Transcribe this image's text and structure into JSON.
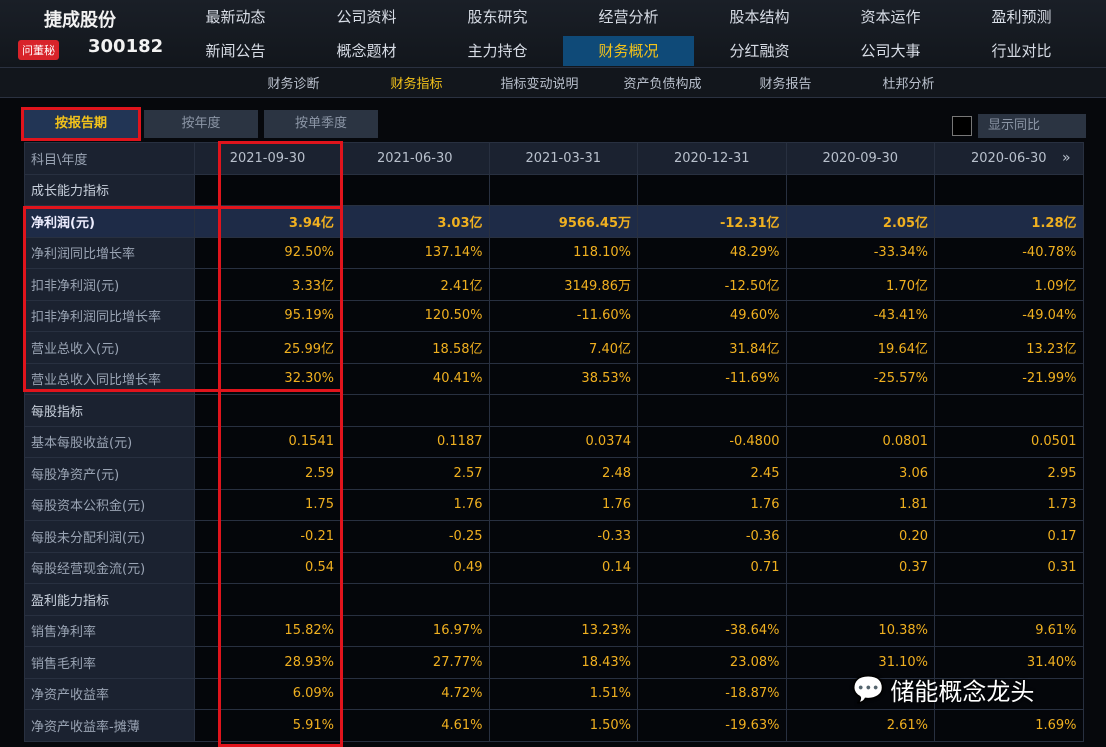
{
  "brand": {
    "name": "捷成股份",
    "badge": "问董秘",
    "code": "300182"
  },
  "nav": {
    "row1": [
      "最新动态",
      "公司资料",
      "股东研究",
      "经营分析",
      "股本结构",
      "资本运作",
      "盈利预测"
    ],
    "row2": [
      "新闻公告",
      "概念题材",
      "主力持仓",
      "财务概况",
      "分红融资",
      "公司大事",
      "行业对比"
    ],
    "active": "财务概况"
  },
  "subnav": {
    "items": [
      "财务诊断",
      "财务指标",
      "指标变动说明",
      "资产负债构成",
      "财务报告",
      "杜邦分析"
    ],
    "active": "财务指标"
  },
  "tabs": {
    "items": [
      "按报告期",
      "按年度",
      "按单季度"
    ],
    "active": "按报告期"
  },
  "yoy_label": "显示同比",
  "table": {
    "header_label": "科目\\年度",
    "columns": [
      "2021-09-30",
      "2021-06-30",
      "2021-03-31",
      "2020-12-31",
      "2020-09-30",
      "2020-06-30"
    ],
    "rows": [
      {
        "label": "成长能力指标",
        "section": true,
        "values": [
          "",
          "",
          "",
          "",
          "",
          ""
        ]
      },
      {
        "label": "净利润(元)",
        "highlight": true,
        "values": [
          "3.94亿",
          "3.03亿",
          "9566.45万",
          "-12.31亿",
          "2.05亿",
          "1.28亿"
        ]
      },
      {
        "label": "净利润同比增长率",
        "values": [
          "92.50%",
          "137.14%",
          "118.10%",
          "48.29%",
          "-33.34%",
          "-40.78%"
        ]
      },
      {
        "label": "扣非净利润(元)",
        "values": [
          "3.33亿",
          "2.41亿",
          "3149.86万",
          "-12.50亿",
          "1.70亿",
          "1.09亿"
        ]
      },
      {
        "label": "扣非净利润同比增长率",
        "values": [
          "95.19%",
          "120.50%",
          "-11.60%",
          "49.60%",
          "-43.41%",
          "-49.04%"
        ]
      },
      {
        "label": "营业总收入(元)",
        "values": [
          "25.99亿",
          "18.58亿",
          "7.40亿",
          "31.84亿",
          "19.64亿",
          "13.23亿"
        ]
      },
      {
        "label": "营业总收入同比增长率",
        "values": [
          "32.30%",
          "40.41%",
          "38.53%",
          "-11.69%",
          "-25.57%",
          "-21.99%"
        ]
      },
      {
        "label": "每股指标",
        "section": true,
        "values": [
          "",
          "",
          "",
          "",
          "",
          ""
        ]
      },
      {
        "label": "基本每股收益(元)",
        "values": [
          "0.1541",
          "0.1187",
          "0.0374",
          "-0.4800",
          "0.0801",
          "0.0501"
        ]
      },
      {
        "label": "每股净资产(元)",
        "values": [
          "2.59",
          "2.57",
          "2.48",
          "2.45",
          "3.06",
          "2.95"
        ]
      },
      {
        "label": "每股资本公积金(元)",
        "values": [
          "1.75",
          "1.76",
          "1.76",
          "1.76",
          "1.81",
          "1.73"
        ]
      },
      {
        "label": "每股未分配利润(元)",
        "values": [
          "-0.21",
          "-0.25",
          "-0.33",
          "-0.36",
          "0.20",
          "0.17"
        ]
      },
      {
        "label": "每股经营现金流(元)",
        "values": [
          "0.54",
          "0.49",
          "0.14",
          "0.71",
          "0.37",
          "0.31"
        ]
      },
      {
        "label": "盈利能力指标",
        "section": true,
        "values": [
          "",
          "",
          "",
          "",
          "",
          ""
        ]
      },
      {
        "label": "销售净利率",
        "values": [
          "15.82%",
          "16.97%",
          "13.23%",
          "-38.64%",
          "10.38%",
          "9.61%"
        ]
      },
      {
        "label": "销售毛利率",
        "values": [
          "28.93%",
          "27.77%",
          "18.43%",
          "23.08%",
          "31.10%",
          "31.40%"
        ]
      },
      {
        "label": "净资产收益率",
        "values": [
          "6.09%",
          "4.72%",
          "1.51%",
          "-18.87%",
          "",
          ""
        ]
      },
      {
        "label": "净资产收益率-摊薄",
        "values": [
          "5.91%",
          "4.61%",
          "1.50%",
          "-19.63%",
          "2.61%",
          "1.69%"
        ]
      }
    ]
  },
  "watermark": "储能概念龙头",
  "colors": {
    "value": "#f0b020",
    "highlight_box": "#e0141c",
    "active_tab": "#0f4a78"
  }
}
